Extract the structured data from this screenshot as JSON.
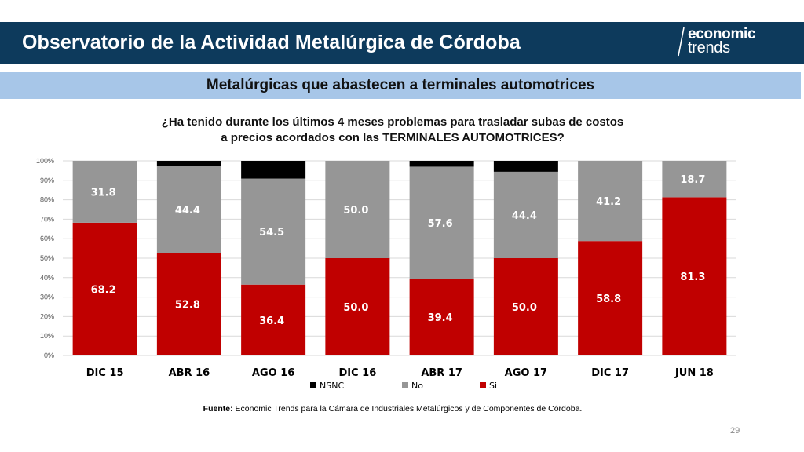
{
  "header": {
    "title": "Observatorio de la Actividad Metalúrgica de Córdoba",
    "logo_line1": "economic",
    "logo_line2": "trends"
  },
  "subtitle": "Metalúrgicas que abastecen a terminales automotrices",
  "question": {
    "line1": "¿Ha tenido durante los últimos 4 meses problemas para trasladar subas de costos",
    "line2": "a precios acordados con las TERMINALES AUTOMOTRICES?"
  },
  "source": {
    "label": "Fuente:",
    "text": " Economic Trends para la Cámara de Industriales Metalúrgicos y de Componentes de Córdoba."
  },
  "page_number": "29",
  "chart_data": {
    "type": "bar",
    "stacked": true,
    "percent_stacked": true,
    "categories": [
      "DIC 15",
      "ABR 16",
      "AGO 16",
      "DIC 16",
      "ABR 17",
      "AGO 17",
      "DIC 17",
      "JUN 18"
    ],
    "series": [
      {
        "name": "Si",
        "color": "#c00000",
        "values": [
          68.2,
          52.8,
          36.4,
          50.0,
          39.4,
          50.0,
          58.8,
          81.3
        ],
        "show_labels": true
      },
      {
        "name": "No",
        "color": "#969696",
        "values": [
          31.8,
          44.4,
          54.5,
          50.0,
          57.6,
          44.4,
          41.2,
          18.7
        ],
        "show_labels": true
      },
      {
        "name": "NSNC",
        "color": "#000000",
        "values": [
          0.0,
          2.8,
          9.1,
          0.0,
          3.0,
          5.6,
          0.0,
          0.0
        ],
        "show_labels": false
      }
    ],
    "legend_order": [
      "NSNC",
      "No",
      "Si"
    ],
    "legend_position": "bottom",
    "yticks": [
      "0%",
      "10%",
      "20%",
      "30%",
      "40%",
      "50%",
      "60%",
      "70%",
      "80%",
      "90%",
      "100%"
    ],
    "ylim": [
      0,
      100
    ],
    "grid": true
  }
}
